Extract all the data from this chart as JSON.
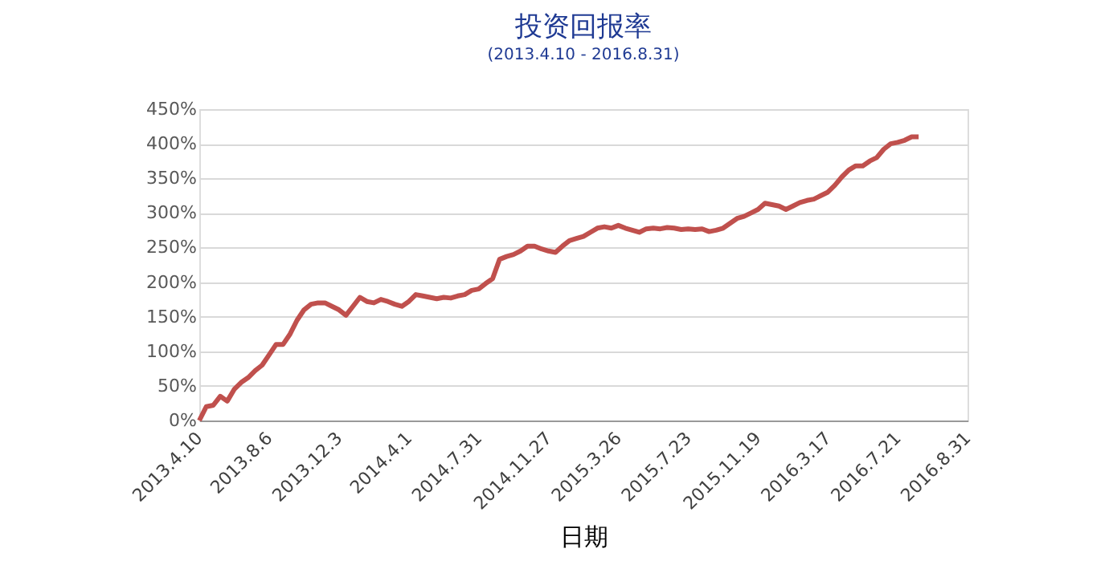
{
  "chart_data": {
    "type": "line",
    "title": "投资回报率",
    "subtitle": "(2013.4.10 - 2016.8.31)",
    "xlabel": "日期",
    "categories": [
      "2013.4.10",
      null,
      null,
      null,
      null,
      null,
      null,
      null,
      null,
      null,
      "2013.8.6",
      null,
      null,
      null,
      null,
      null,
      null,
      null,
      null,
      null,
      "2013.12.3",
      null,
      null,
      null,
      null,
      null,
      null,
      null,
      null,
      null,
      "2014.4.1",
      null,
      null,
      null,
      null,
      null,
      null,
      null,
      null,
      null,
      "2014.7.31",
      null,
      null,
      null,
      null,
      null,
      null,
      null,
      null,
      null,
      "2014.11.27",
      null,
      null,
      null,
      null,
      null,
      null,
      null,
      null,
      null,
      "2015.3.26",
      null,
      null,
      null,
      null,
      null,
      null,
      null,
      null,
      null,
      "2015.7.23",
      null,
      null,
      null,
      null,
      null,
      null,
      null,
      null,
      null,
      "2015.11.19",
      null,
      null,
      null,
      null,
      null,
      null,
      null,
      null,
      null,
      "2016.3.17",
      null,
      null,
      null,
      null,
      null,
      null,
      null,
      null,
      null,
      "2016.7.21",
      null,
      null,
      null,
      null,
      null,
      null,
      null,
      null,
      null,
      "2016.8.31"
    ],
    "series": [
      {
        "color": "#c0504d",
        "values": [
          0,
          20,
          22,
          35,
          28,
          45,
          55,
          62,
          72,
          80,
          95,
          110,
          110,
          125,
          145,
          160,
          168,
          170,
          170,
          165,
          160,
          152,
          165,
          178,
          172,
          170,
          175,
          172,
          168,
          165,
          172,
          182,
          180,
          178,
          176,
          178,
          177,
          180,
          182,
          188,
          190,
          198,
          205,
          233,
          237,
          240,
          245,
          252,
          252,
          248,
          245,
          243,
          252,
          260,
          263,
          266,
          272,
          278,
          280,
          278,
          282,
          278,
          275,
          272,
          277,
          278,
          277,
          279,
          278,
          276,
          277,
          276,
          277,
          273,
          275,
          278,
          285,
          292,
          295,
          300,
          305,
          314,
          312,
          310,
          305,
          310,
          315,
          318,
          320,
          325,
          330,
          340,
          352,
          362,
          368,
          368,
          375,
          380,
          392,
          400,
          402,
          405,
          410,
          410,
          null,
          null,
          null,
          null,
          null,
          null,
          null
        ]
      }
    ],
    "ylim": [
      0,
      450
    ],
    "yticks": [
      {
        "value": 0,
        "label": "0%"
      },
      {
        "value": 50,
        "label": "50%"
      },
      {
        "value": 100,
        "label": "100%"
      },
      {
        "value": 150,
        "label": "150%"
      },
      {
        "value": 200,
        "label": "200%"
      },
      {
        "value": 250,
        "label": "250%"
      },
      {
        "value": 300,
        "label": "300%"
      },
      {
        "value": 350,
        "label": "350%"
      },
      {
        "value": 400,
        "label": "400%"
      },
      {
        "value": 450,
        "label": "450%"
      }
    ],
    "grid": "y",
    "legend": false,
    "marker": "none",
    "line_style": "solid"
  }
}
